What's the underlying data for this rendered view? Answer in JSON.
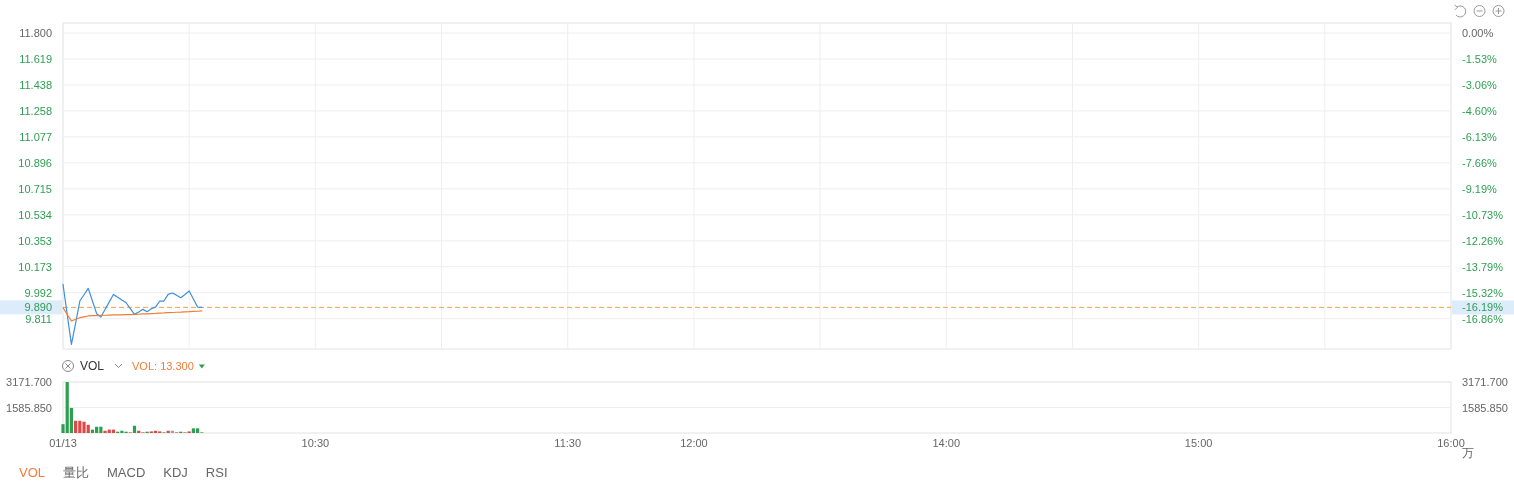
{
  "chart_data": [
    {
      "type": "line",
      "categories": [
        null,
        null,
        null,
        null,
        null,
        null,
        null,
        null,
        null,
        null,
        null,
        null,
        null,
        null,
        null,
        null,
        null,
        null,
        null,
        null,
        null,
        null,
        null,
        null,
        null,
        null,
        null,
        null,
        null,
        null,
        null,
        null,
        null,
        null,
        null,
        null,
        null,
        null,
        null,
        null,
        null,
        null,
        null,
        null,
        null,
        null,
        null,
        null,
        null,
        null,
        null,
        null,
        null,
        null,
        null,
        null,
        null,
        null,
        null,
        null,
        null,
        null,
        null,
        null,
        null,
        null,
        null,
        null,
        null,
        null,
        null,
        null,
        null,
        null,
        null,
        null,
        null,
        null,
        null,
        null,
        null,
        null,
        null,
        null,
        null,
        null,
        null,
        null,
        null,
        null,
        null,
        null,
        null,
        null,
        null,
        null,
        null,
        null,
        null,
        null,
        null,
        null,
        null,
        null,
        null,
        null,
        null,
        null,
        null,
        null,
        null,
        null,
        null,
        null,
        null,
        null,
        null,
        null,
        null,
        null,
        null,
        null,
        null,
        null,
        null,
        null,
        null,
        null,
        null,
        null,
        null,
        null,
        null,
        null,
        null,
        null,
        null,
        null,
        null,
        null,
        null,
        null,
        null,
        null,
        null,
        null,
        null,
        null,
        null,
        null,
        null,
        null,
        null,
        null,
        null,
        null,
        null,
        null,
        null,
        null,
        null,
        null,
        null,
        null,
        null,
        null,
        null,
        null,
        null,
        null,
        null,
        null,
        null,
        null,
        null,
        null,
        null,
        null,
        null,
        null,
        null,
        null,
        null,
        null,
        null,
        null,
        null,
        null,
        null,
        null,
        null,
        null,
        null,
        null,
        null,
        null,
        null,
        null,
        null,
        null,
        null,
        null,
        null,
        null,
        null,
        null,
        null,
        null,
        null,
        null,
        null,
        null,
        null,
        null,
        null,
        null,
        null,
        null,
        null,
        null,
        null,
        null,
        null,
        null,
        null,
        null,
        null,
        null,
        null,
        null,
        null,
        null,
        null,
        null,
        null,
        null,
        null,
        null,
        null,
        null,
        null,
        null,
        null,
        null,
        null,
        null,
        null,
        null,
        null,
        null,
        null,
        null,
        null,
        null,
        null,
        null,
        null,
        null,
        null,
        null,
        null,
        null,
        null,
        null,
        null,
        null,
        null,
        null,
        null,
        null,
        null,
        null,
        null,
        null,
        null,
        null,
        null,
        null,
        null,
        null,
        null,
        null,
        null,
        null,
        null,
        null,
        null,
        null,
        null,
        null,
        null,
        null,
        null,
        null,
        null,
        null,
        null,
        null,
        null,
        null,
        null,
        null,
        null,
        null,
        null,
        null,
        null,
        null,
        null,
        null,
        null,
        null,
        null,
        null,
        null,
        null,
        null,
        null,
        null,
        null,
        null,
        null,
        null,
        null,
        null,
        null,
        null,
        null,
        null,
        null,
        null
      ],
      "ylim": [
        9.6,
        11.87
      ],
      "yticks": [
        9.811,
        9.992,
        10.173,
        10.353,
        10.534,
        10.715,
        10.896,
        11.077,
        11.258,
        11.438,
        11.619,
        {
          "value": 11.8,
          "label": "11.800"
        }
      ],
      "y2lim": [
        -18.64,
        0.59
      ],
      "y2ticks": [
        {
          "value": -16.86,
          "label": "-16.86%"
        },
        {
          "value": -16.19,
          "label": "-16.19%"
        },
        {
          "value": -15.32,
          "label": "-15.32%"
        },
        {
          "value": -13.79,
          "label": "-13.79%"
        },
        {
          "value": -12.26,
          "label": "-12.26%"
        },
        {
          "value": -10.73,
          "label": "-10.73%"
        },
        {
          "value": -9.19,
          "label": "-9.19%"
        },
        {
          "value": -7.66,
          "label": "-7.66%"
        },
        {
          "value": -6.13,
          "label": "-6.13%"
        },
        {
          "value": -4.6,
          "label": "-4.60%"
        },
        {
          "value": -3.06,
          "label": "-3.06%"
        },
        {
          "value": -1.53,
          "label": "-1.53%"
        },
        {
          "value": 0,
          "label": "0.00%"
        }
      ],
      "series": [
        {
          "color": "#3d8fe0",
          "values": [
            10.05,
            9.84,
            9.632,
            9.78,
            9.934,
            9.978,
            10.022,
            9.934,
            9.846,
            9.823,
            9.875,
            9.928,
            9.98,
            9.961,
            9.941,
            9.922,
            9.881,
            9.841,
            9.858,
            9.876,
            9.86,
            9.88,
            9.892,
            9.934,
            9.934,
            9.98,
            9.99,
            9.975,
            9.957,
            9.98,
            10.004,
            9.948,
            9.892,
            9.89,
            null,
            null,
            null,
            null,
            null,
            null,
            null,
            null,
            null,
            null,
            null,
            null,
            null,
            null,
            null,
            null,
            null,
            null,
            null,
            null,
            null,
            null,
            null,
            null,
            null,
            null,
            null,
            null,
            null,
            null,
            null,
            null,
            null,
            null,
            null,
            null,
            null,
            null,
            null,
            null,
            null,
            null,
            null,
            null,
            null,
            null,
            null,
            null,
            null,
            null,
            null,
            null,
            null,
            null,
            null,
            null,
            null,
            null,
            null,
            null,
            null,
            null,
            null,
            null,
            null,
            null,
            null,
            null,
            null,
            null,
            null,
            null,
            null,
            null,
            null,
            null,
            null,
            null,
            null,
            null,
            null,
            null,
            null,
            null,
            null,
            null,
            null,
            null,
            null,
            null,
            null,
            null,
            null,
            null,
            null,
            null,
            null,
            null,
            null,
            null,
            null,
            null,
            null,
            null,
            null,
            null,
            null,
            null,
            null,
            null,
            null,
            null,
            null,
            null,
            null,
            null,
            null,
            null,
            null,
            null,
            null,
            null,
            null,
            null,
            null,
            null,
            null,
            null,
            null,
            null,
            null,
            null,
            null,
            null,
            null,
            null,
            null,
            null,
            null,
            null,
            null,
            null,
            null,
            null,
            null,
            null,
            null,
            null,
            null,
            null,
            null,
            null,
            null,
            null,
            null,
            null,
            null,
            null,
            null,
            null,
            null,
            null,
            null,
            null,
            null,
            null,
            null,
            null,
            null,
            null,
            null,
            null,
            null,
            null,
            null,
            null,
            null,
            null,
            null,
            null,
            null,
            null,
            null,
            null,
            null,
            null,
            null,
            null,
            null,
            null,
            null,
            null,
            null,
            null,
            null,
            null,
            null,
            null,
            null,
            null,
            null,
            null,
            null,
            null,
            null,
            null,
            null,
            null,
            null,
            null,
            null,
            null,
            null,
            null,
            null,
            null,
            null,
            null,
            null,
            null,
            null,
            null,
            null,
            null,
            null,
            null,
            null,
            null,
            null,
            null,
            null,
            null,
            null,
            null,
            null,
            null,
            null,
            null,
            null,
            null,
            null,
            null,
            null,
            null,
            null,
            null,
            null,
            null,
            null,
            null,
            null,
            null,
            null,
            null,
            null,
            null,
            null,
            null,
            null,
            null,
            null,
            null,
            null,
            null,
            null,
            null,
            null,
            null,
            null,
            null,
            null,
            null,
            null,
            null,
            null,
            null,
            null,
            null,
            null,
            null,
            null,
            null,
            null,
            null,
            null,
            null,
            null,
            null,
            null,
            null,
            null,
            null,
            null,
            null,
            null,
            null,
            null
          ]
        },
        {
          "color": "#f07c38",
          "values": [
            9.888,
            9.84,
            9.795,
            9.807,
            9.818,
            9.824,
            9.83,
            9.832,
            9.833,
            9.834,
            9.835,
            9.836,
            9.837,
            9.838,
            9.838,
            9.839,
            9.84,
            9.841,
            9.842,
            9.844,
            9.845,
            9.847,
            9.848,
            9.85,
            9.851,
            9.853,
            9.854,
            9.856,
            9.857,
            9.859,
            9.86,
            9.862,
            9.863,
            9.865,
            null,
            null,
            null,
            null,
            null,
            null,
            null,
            null,
            null,
            null,
            null,
            null,
            null,
            null,
            null,
            null,
            null,
            null,
            null,
            null,
            null,
            null,
            null,
            null,
            null,
            null,
            null,
            null,
            null,
            null,
            null,
            null,
            null,
            null,
            null,
            null,
            null,
            null,
            null,
            null,
            null,
            null,
            null,
            null,
            null,
            null,
            null,
            null,
            null,
            null,
            null,
            null,
            null,
            null,
            null,
            null,
            null,
            null,
            null,
            null,
            null,
            null,
            null,
            null,
            null,
            null,
            null,
            null,
            null,
            null,
            null,
            null,
            null,
            null,
            null,
            null,
            null,
            null,
            null,
            null,
            null,
            null,
            null,
            null,
            null,
            null,
            null,
            null,
            null,
            null,
            null,
            null,
            null,
            null,
            null,
            null,
            null,
            null,
            null,
            null,
            null,
            null,
            null,
            null,
            null,
            null,
            null,
            null,
            null,
            null,
            null,
            null,
            null,
            null,
            null,
            null,
            null,
            null,
            null,
            null,
            null,
            null,
            null,
            null,
            null,
            null,
            null,
            null,
            null,
            null,
            null,
            null,
            null,
            null,
            null,
            null,
            null,
            null,
            null,
            null,
            null,
            null,
            null,
            null,
            null,
            null,
            null,
            null,
            null,
            null,
            null,
            null,
            null,
            null,
            null,
            null,
            null,
            null,
            null,
            null,
            null,
            null,
            null,
            null,
            null,
            null,
            null,
            null,
            null,
            null,
            null,
            null,
            null,
            null,
            null,
            null,
            null,
            null,
            null,
            null,
            null,
            null,
            null,
            null,
            null,
            null,
            null,
            null,
            null,
            null,
            null,
            null,
            null,
            null,
            null,
            null,
            null,
            null,
            null,
            null,
            null,
            null,
            null,
            null,
            null,
            null,
            null,
            null,
            null,
            null,
            null,
            null,
            null,
            null,
            null,
            null,
            null,
            null,
            null,
            null,
            null,
            null,
            null,
            null,
            null,
            null,
            null,
            null,
            null,
            null,
            null,
            null,
            null,
            null,
            null,
            null,
            null,
            null,
            null,
            null,
            null,
            null,
            null,
            null,
            null,
            null,
            null,
            null,
            null,
            null,
            null,
            null,
            null,
            null,
            null,
            null,
            null,
            null,
            null,
            null,
            null,
            null,
            null,
            null,
            null,
            null,
            null,
            null,
            null,
            null,
            null,
            null,
            null,
            null,
            null,
            null,
            null,
            null,
            null,
            null,
            null,
            null,
            null,
            null,
            null,
            null,
            null,
            null,
            null,
            null,
            null,
            null,
            null,
            null,
            null,
            null,
            null
          ]
        }
      ],
      "ref_lines": [
        {
          "axis": "y",
          "value": 9.89,
          "label": "9.890",
          "color": "#f5a04a",
          "line_style": "dashed"
        }
      ],
      "grid": true,
      "tick_labels": "y"
    },
    {
      "type": "bar",
      "categories": [
        "01/13",
        null,
        null,
        null,
        null,
        null,
        null,
        null,
        null,
        null,
        null,
        null,
        null,
        null,
        null,
        null,
        null,
        null,
        null,
        null,
        null,
        null,
        null,
        null,
        null,
        null,
        null,
        null,
        null,
        null,
        null,
        null,
        null,
        null,
        null,
        null,
        null,
        null,
        null,
        null,
        null,
        null,
        null,
        null,
        null,
        null,
        null,
        null,
        null,
        null,
        null,
        null,
        null,
        null,
        null,
        null,
        null,
        null,
        null,
        null,
        "10:30",
        null,
        null,
        null,
        null,
        null,
        null,
        null,
        null,
        null,
        null,
        null,
        null,
        null,
        null,
        null,
        null,
        null,
        null,
        null,
        null,
        null,
        null,
        null,
        null,
        null,
        null,
        null,
        null,
        null,
        null,
        null,
        null,
        null,
        null,
        null,
        null,
        null,
        null,
        null,
        null,
        null,
        null,
        null,
        null,
        null,
        null,
        null,
        null,
        null,
        null,
        null,
        null,
        null,
        null,
        null,
        null,
        null,
        null,
        null,
        "11:30",
        null,
        null,
        null,
        null,
        null,
        null,
        null,
        null,
        null,
        null,
        null,
        null,
        null,
        null,
        null,
        null,
        null,
        null,
        null,
        null,
        null,
        null,
        null,
        null,
        null,
        null,
        null,
        null,
        null,
        "12:00",
        null,
        null,
        null,
        null,
        null,
        null,
        null,
        null,
        null,
        null,
        null,
        null,
        null,
        null,
        null,
        null,
        null,
        null,
        null,
        null,
        null,
        null,
        null,
        null,
        null,
        null,
        null,
        null,
        null,
        null,
        null,
        null,
        null,
        null,
        null,
        null,
        null,
        null,
        null,
        null,
        null,
        null,
        null,
        null,
        null,
        null,
        null,
        null,
        null,
        null,
        null,
        null,
        null,
        null,
        null,
        null,
        null,
        null,
        null,
        "14:00",
        null,
        null,
        null,
        null,
        null,
        null,
        null,
        null,
        null,
        null,
        null,
        null,
        null,
        null,
        null,
        null,
        null,
        null,
        null,
        null,
        null,
        null,
        null,
        null,
        null,
        null,
        null,
        null,
        null,
        null,
        null,
        null,
        null,
        null,
        null,
        null,
        null,
        null,
        null,
        null,
        null,
        null,
        null,
        null,
        null,
        null,
        null,
        null,
        null,
        null,
        null,
        null,
        null,
        null,
        null,
        null,
        null,
        null,
        null,
        "15:00",
        null,
        null,
        null,
        null,
        null,
        null,
        null,
        null,
        null,
        null,
        null,
        null,
        null,
        null,
        null,
        null,
        null,
        null,
        null,
        null,
        null,
        null,
        null,
        null,
        null,
        null,
        null,
        null,
        null,
        null,
        null,
        null,
        null,
        null,
        null,
        null,
        null,
        null,
        null,
        null,
        null,
        null,
        null,
        null,
        null,
        null,
        null,
        null,
        null,
        null,
        null,
        null,
        null,
        null,
        null,
        null,
        null,
        null,
        null,
        "16:00"
      ],
      "values": [
        550,
        3170,
        1560,
        760,
        760,
        700,
        510,
        210,
        390,
        390,
        140,
        210,
        210,
        80,
        140,
        80,
        40,
        450,
        140,
        40,
        80,
        100,
        140,
        100,
        40,
        140,
        140,
        40,
        80,
        40,
        100,
        290,
        290,
        40,
        null,
        null,
        null,
        null,
        null,
        null,
        null,
        null,
        null,
        null,
        null,
        null,
        null,
        null,
        null,
        null,
        null,
        null,
        null,
        null,
        null,
        null,
        null,
        null,
        null,
        null,
        null,
        null,
        null,
        null,
        null,
        null,
        null,
        null,
        null,
        null,
        null,
        null,
        null,
        null,
        null,
        null,
        null,
        null,
        null,
        null,
        null,
        null,
        null,
        null,
        null,
        null,
        null,
        null,
        null,
        null,
        null,
        null,
        null,
        null,
        null,
        null,
        null,
        null,
        null,
        null,
        null,
        null,
        null,
        null,
        null,
        null,
        null,
        null,
        null,
        null,
        null,
        null,
        null,
        null,
        null,
        null,
        null,
        null,
        null,
        null,
        null,
        null,
        null,
        null,
        null,
        null,
        null,
        null,
        null,
        null,
        null,
        null,
        null,
        null,
        null,
        null,
        null,
        null,
        null,
        null,
        null,
        null,
        null,
        null,
        null,
        null,
        null,
        null,
        null,
        null,
        null,
        null,
        null,
        null,
        null,
        null,
        null,
        null,
        null,
        null,
        null,
        null,
        null,
        null,
        null,
        null,
        null,
        null,
        null,
        null,
        null,
        null,
        null,
        null,
        null,
        null,
        null,
        null,
        null,
        null,
        null,
        null,
        null,
        null,
        null,
        null,
        null,
        null,
        null,
        null,
        null,
        null,
        null,
        null,
        null,
        null,
        null,
        null,
        null,
        null,
        null,
        null,
        null,
        null,
        null,
        null,
        null,
        null,
        null,
        null,
        null,
        null,
        null,
        null,
        null,
        null,
        null,
        null,
        null,
        null,
        null,
        null,
        null,
        null,
        null,
        null,
        null,
        null,
        null,
        null,
        null,
        null,
        null,
        null,
        null,
        null,
        null,
        null,
        null,
        null,
        null,
        null,
        null,
        null,
        null,
        null,
        null,
        null,
        null,
        null,
        null,
        null,
        null,
        null,
        null,
        null,
        null,
        null,
        null,
        null,
        null,
        null,
        null,
        null,
        null,
        null,
        null,
        null,
        null,
        null,
        null,
        null,
        null,
        null,
        null,
        null,
        null,
        null,
        null,
        null,
        null,
        null,
        null,
        null,
        null,
        null,
        null,
        null,
        null,
        null,
        null,
        null,
        null,
        null,
        null,
        null,
        null,
        null,
        null,
        null,
        null,
        null,
        null,
        null,
        null,
        null,
        null,
        null,
        null,
        null,
        null,
        null,
        null,
        null,
        null,
        null,
        null,
        null,
        null,
        null,
        null,
        null,
        null,
        null,
        null,
        null,
        null,
        null,
        null,
        null,
        null
      ],
      "colors": [
        "#2e9e52",
        "#2e9e52",
        "#2e9e52",
        "#e04848",
        "#e04848",
        "#e04848",
        "#e04848",
        "#2e9e52",
        "#2e9e52",
        "#2e9e52",
        "#e04848",
        "#e04848",
        "#e04848",
        "#2e9e52",
        "#2e9e52",
        "#2e9e52",
        "#e04848",
        "#2e9e52",
        "#e04848",
        "#e04848",
        "#2e9e52",
        "#e04848",
        "#e04848",
        "#e04848",
        "#2e9e52",
        "#e04848",
        "#a0a0a0",
        "#e04848",
        "#2e9e52",
        "#e04848",
        "#e04848",
        "#2e9e52",
        "#2e9e52",
        "#2e9e52",
        null,
        null,
        null,
        null,
        null,
        null,
        null,
        null,
        null,
        null,
        null,
        null,
        null,
        null,
        null,
        null,
        null,
        null,
        null,
        null,
        null,
        null,
        null,
        null,
        null,
        null,
        null,
        null,
        null,
        null,
        null,
        null,
        null,
        null,
        null,
        null,
        null,
        null,
        null,
        null,
        null,
        null,
        null,
        null,
        null,
        null,
        null,
        null,
        null,
        null,
        null,
        null,
        null,
        null,
        null,
        null,
        null,
        null,
        null,
        null,
        null,
        null,
        null,
        null,
        null,
        null,
        null,
        null,
        null,
        null,
        null,
        null,
        null,
        null,
        null,
        null,
        null,
        null,
        null,
        null,
        null,
        null,
        null,
        null,
        null,
        null,
        null,
        null,
        null,
        null,
        null,
        null,
        null,
        null,
        null,
        null,
        null,
        null,
        null,
        null,
        null,
        null,
        null,
        null,
        null,
        null,
        null,
        null,
        null,
        null,
        null,
        null,
        null,
        null,
        null,
        null,
        null,
        null,
        null,
        null,
        null,
        null,
        null,
        null,
        null,
        null,
        null,
        null,
        null,
        null,
        null,
        null,
        null,
        null,
        null,
        null,
        null,
        null,
        null,
        null,
        null,
        null,
        null,
        null,
        null,
        null,
        null,
        null,
        null,
        null,
        null,
        null,
        null,
        null,
        null,
        null,
        null,
        null,
        null,
        null,
        null,
        null,
        null,
        null,
        null,
        null,
        null,
        null,
        null,
        null,
        null,
        null,
        null,
        null,
        null,
        null,
        null,
        null,
        null,
        null,
        null,
        null,
        null,
        null,
        null,
        null,
        null,
        null,
        null,
        null,
        null,
        null,
        null,
        null,
        null,
        null,
        null,
        null,
        null,
        null,
        null,
        null,
        null,
        null,
        null,
        null,
        null,
        null,
        null,
        null,
        null,
        null,
        null,
        null,
        null,
        null,
        null,
        null,
        null,
        null,
        null,
        null,
        null,
        null,
        null,
        null,
        null,
        null,
        null,
        null,
        null,
        null,
        null,
        null,
        null,
        null,
        null,
        null,
        null,
        null,
        null,
        null,
        null,
        null,
        null,
        null,
        null,
        null,
        null,
        null,
        null,
        null,
        null,
        null,
        null,
        null,
        null,
        null,
        null,
        null,
        null,
        null,
        null,
        null,
        null,
        null,
        null,
        null,
        null,
        null,
        null,
        null,
        null,
        null,
        null,
        null,
        null,
        null,
        null,
        null,
        null,
        null,
        null,
        null,
        null,
        null,
        null,
        null,
        null,
        null,
        null,
        null,
        null,
        null,
        null,
        null,
        null
      ],
      "ylim": [
        0,
        3171.7
      ],
      "yticks": [
        {
          "value": 1585.85,
          "label": "1585.850"
        },
        {
          "value": 3171.7,
          "label": "3171.700"
        }
      ],
      "y2lim": [
        0,
        3171.7
      ],
      "y2ticks": [
        {
          "value": 1585.85,
          "label": "1585.850"
        },
        {
          "value": 3171.7,
          "label": "3171.700"
        }
      ],
      "y2label": "万",
      "grid": "y",
      "annotations": [
        "VOL",
        "VOL: 13.300",
        "VOL",
        "量比",
        "MACD",
        "KDJ",
        "RSI"
      ]
    }
  ]
}
